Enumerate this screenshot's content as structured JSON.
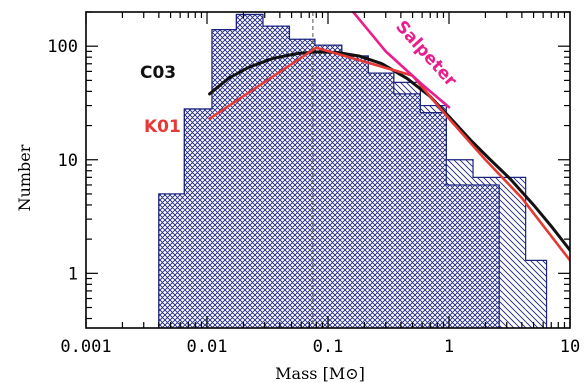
{
  "chart_data": {
    "type": "bar",
    "title": "",
    "xlabel": "Mass [M⊙]",
    "ylabel": "Number",
    "x_scale": "log",
    "y_scale": "log",
    "xlim": [
      0.001,
      10
    ],
    "ylim": [
      0.33,
      200
    ],
    "x_ticks": [
      {
        "value": 0.001,
        "label": "0.001"
      },
      {
        "value": 0.01,
        "label": "0.01"
      },
      {
        "value": 0.1,
        "label": "0.1"
      },
      {
        "value": 1,
        "label": "1"
      },
      {
        "value": 10,
        "label": "10"
      }
    ],
    "y_ticks": [
      {
        "value": 1,
        "label": "1"
      },
      {
        "value": 10,
        "label": "10"
      },
      {
        "value": 100,
        "label": "100"
      }
    ],
    "vertical_reference": {
      "x": 0.075,
      "style": "dashed"
    },
    "histograms": [
      {
        "name": "",
        "style": "cross-hatch",
        "color": "#1a237e",
        "bin_edges": [
          0.004,
          0.0065,
          0.011,
          0.0175,
          0.029,
          0.048,
          0.078,
          0.13,
          0.215,
          0.35,
          0.58,
          0.95,
          1.58,
          2.6
        ],
        "counts": [
          5,
          28,
          140,
          190,
          150,
          115,
          102,
          82,
          58,
          38,
          26,
          6,
          6
        ]
      },
      {
        "name": "",
        "style": "single-hatch",
        "color": "#1a237e",
        "bin_edges": [
          0.004,
          0.0065,
          0.011,
          0.0175,
          0.029,
          0.048,
          0.078,
          0.13,
          0.215,
          0.35,
          0.58,
          0.95,
          1.58,
          2.6,
          4.3,
          6.4
        ],
        "counts": [
          5,
          28,
          140,
          190,
          150,
          115,
          102,
          82,
          58,
          48,
          30,
          10,
          7,
          7,
          1.3
        ]
      }
    ],
    "series": [
      {
        "name": "C03",
        "color": "#111111",
        "x": [
          0.0105,
          0.015,
          0.022,
          0.035,
          0.055,
          0.08,
          0.12,
          0.18,
          0.28,
          0.45,
          0.7,
          1.0,
          1.5,
          2.2,
          3.2,
          5.0,
          7.0,
          10.0
        ],
        "y": [
          38,
          52,
          65,
          78,
          86,
          89,
          88,
          82,
          70,
          52,
          36,
          24,
          15,
          10,
          6.8,
          4.0,
          2.6,
          1.6
        ]
      },
      {
        "name": "K01",
        "color": "#e53935",
        "x": [
          0.0105,
          0.08,
          0.5,
          1.0,
          2.0,
          4.0,
          10.0
        ],
        "y": [
          23,
          97,
          55,
          23,
          10,
          4.6,
          1.3
        ]
      },
      {
        "name": "Salpeter",
        "color": "#e91e8c",
        "x": [
          0.15,
          0.3,
          0.6,
          1.0
        ],
        "y": [
          220,
          90,
          46,
          29
        ]
      }
    ]
  }
}
